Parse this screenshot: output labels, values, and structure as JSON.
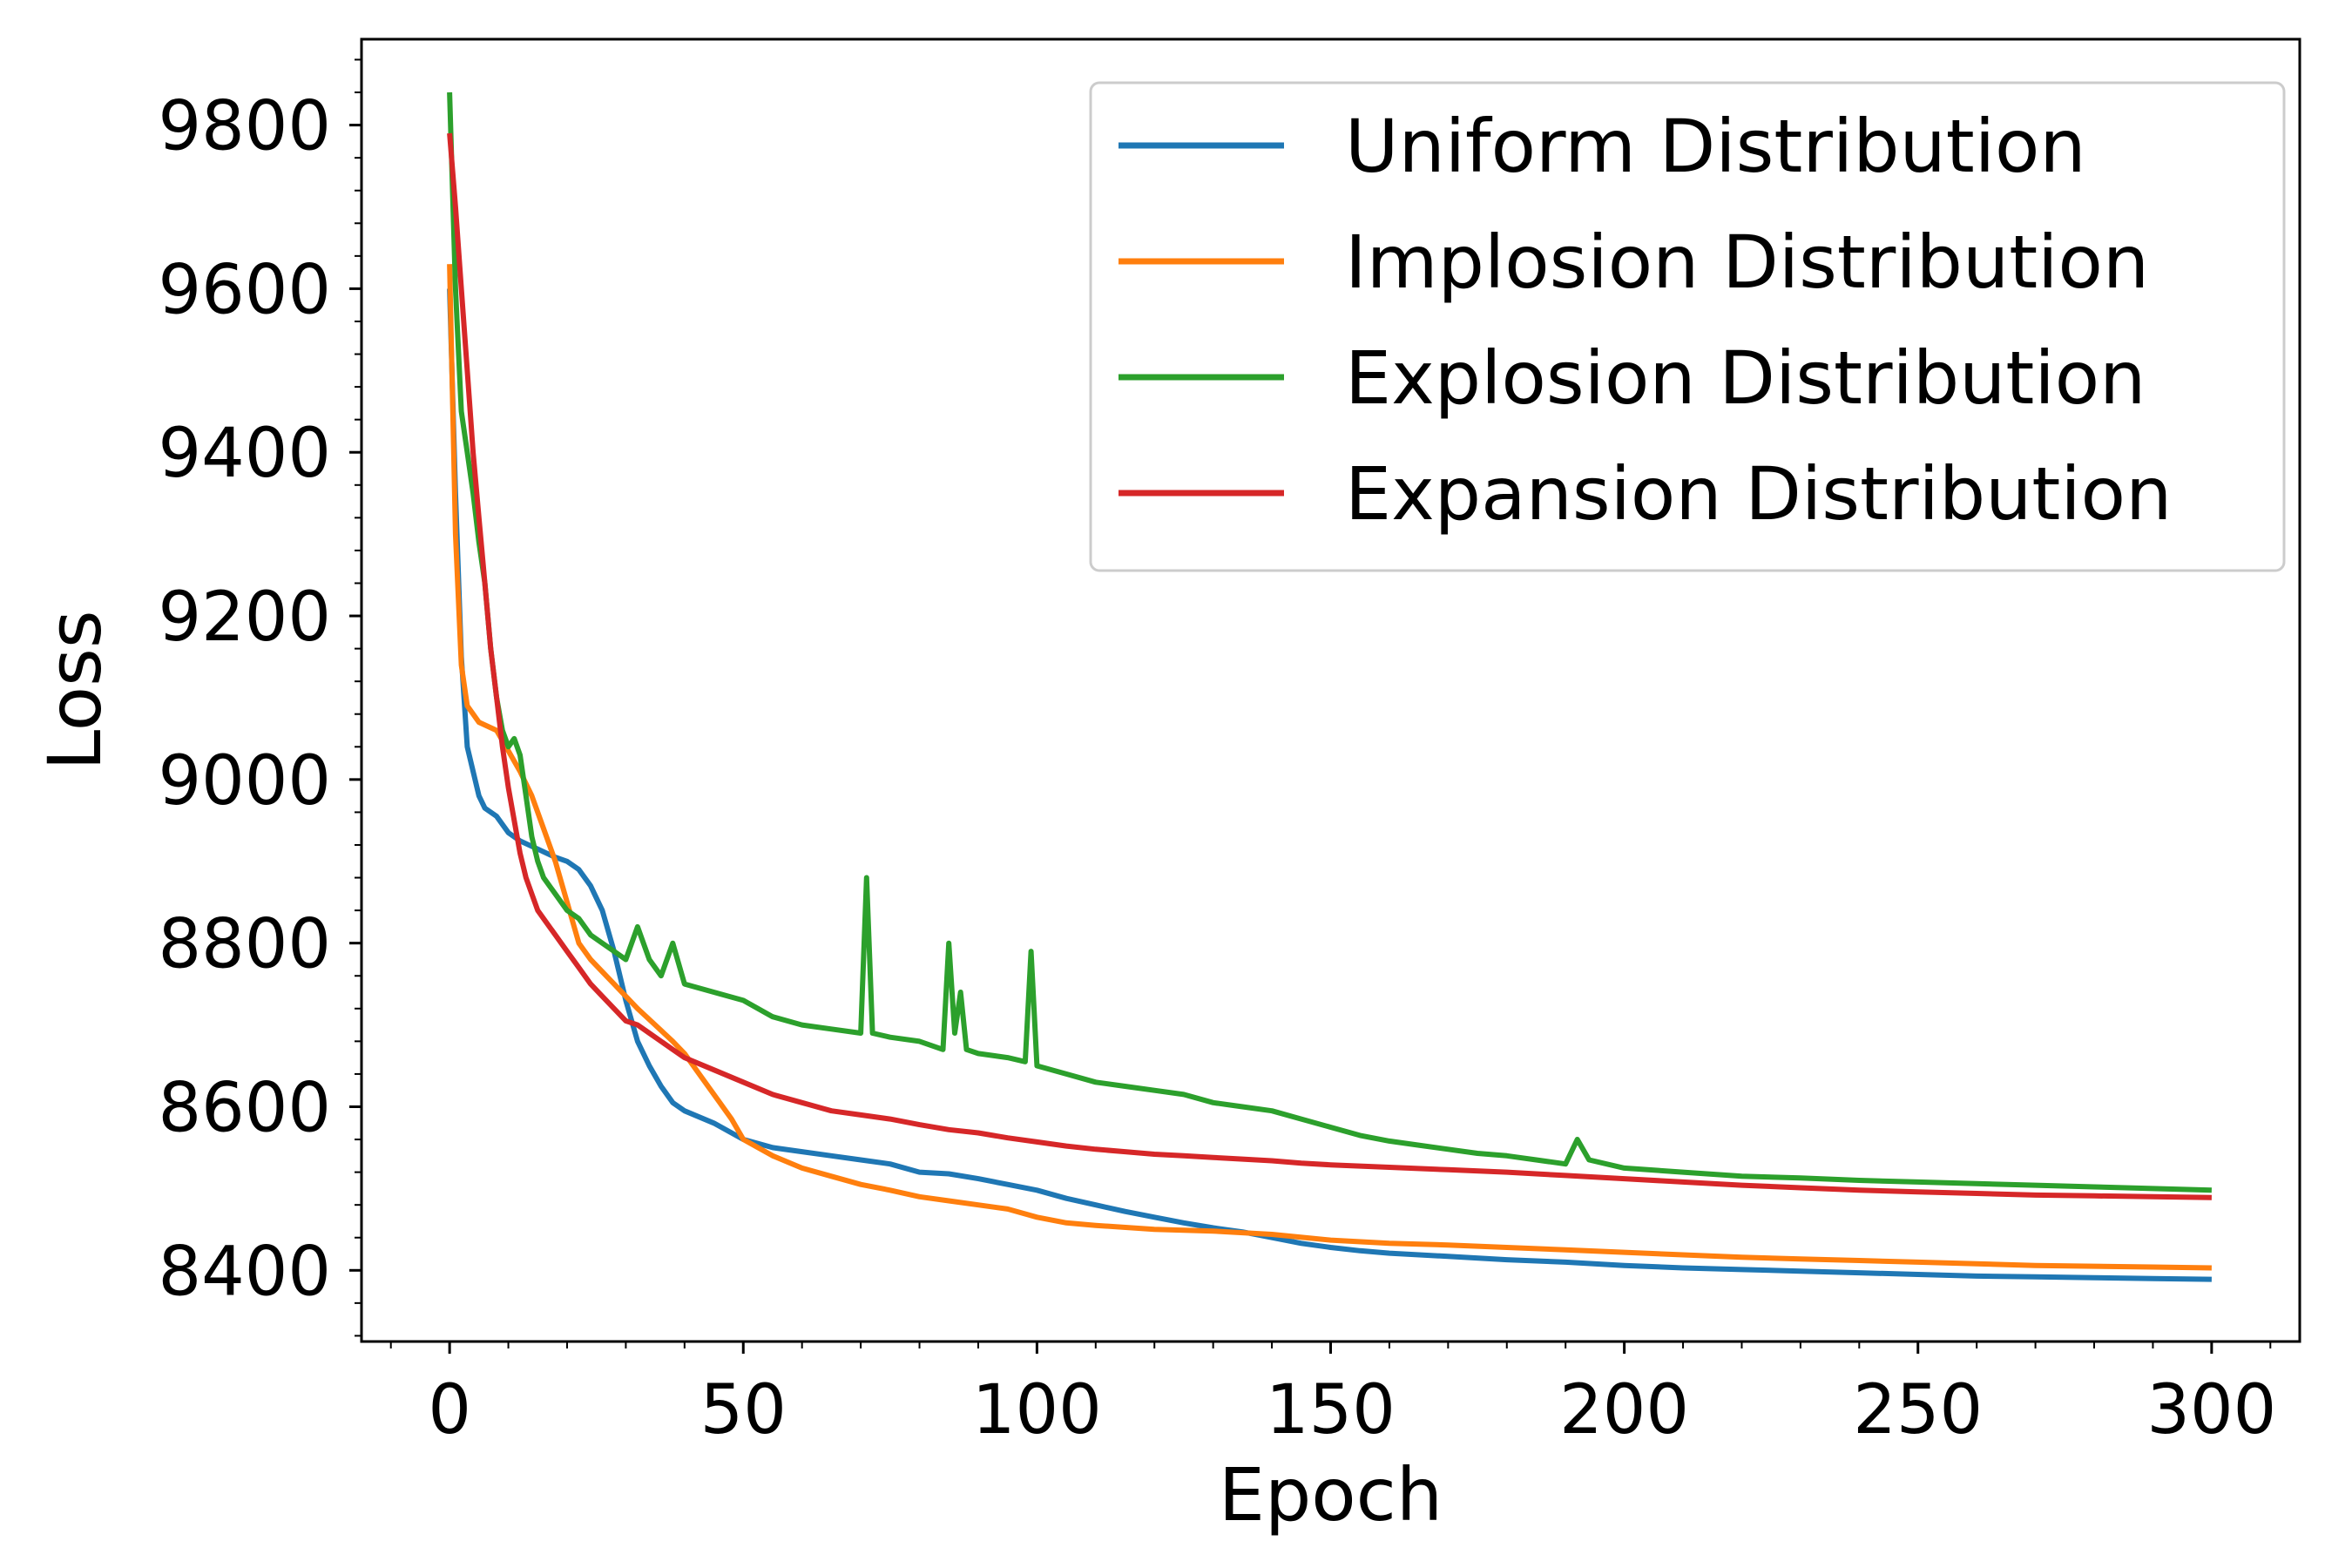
{
  "chart_data": {
    "type": "line",
    "xlabel": "Epoch",
    "ylabel": "Loss",
    "xlim": [
      -15,
      315
    ],
    "ylim": [
      8313,
      9905
    ],
    "xticks": [
      0,
      50,
      100,
      150,
      200,
      250,
      300
    ],
    "yticks": [
      8400,
      8600,
      8800,
      9000,
      9200,
      9400,
      9600,
      9800
    ],
    "grid": false,
    "legend_position": "top-right",
    "colors": {
      "Uniform Distribution": "#1f77b4",
      "Implosion Distribution": "#ff7f0e",
      "Explosion Distribution": "#2ca02c",
      "Expansion Distribution": "#d62728"
    },
    "series": [
      {
        "name": "Uniform Distribution",
        "points": [
          [
            0,
            9600
          ],
          [
            1,
            9350
          ],
          [
            2,
            9150
          ],
          [
            3,
            9040
          ],
          [
            4,
            9010
          ],
          [
            5,
            8980
          ],
          [
            6,
            8965
          ],
          [
            8,
            8955
          ],
          [
            10,
            8935
          ],
          [
            12,
            8925
          ],
          [
            15,
            8915
          ],
          [
            18,
            8905
          ],
          [
            20,
            8900
          ],
          [
            22,
            8890
          ],
          [
            24,
            8870
          ],
          [
            26,
            8840
          ],
          [
            28,
            8790
          ],
          [
            30,
            8730
          ],
          [
            32,
            8680
          ],
          [
            34,
            8650
          ],
          [
            36,
            8625
          ],
          [
            38,
            8605
          ],
          [
            40,
            8595
          ],
          [
            45,
            8580
          ],
          [
            50,
            8560
          ],
          [
            55,
            8550
          ],
          [
            60,
            8545
          ],
          [
            65,
            8540
          ],
          [
            70,
            8535
          ],
          [
            75,
            8530
          ],
          [
            80,
            8520
          ],
          [
            85,
            8518
          ],
          [
            90,
            8512
          ],
          [
            95,
            8505
          ],
          [
            100,
            8498
          ],
          [
            105,
            8488
          ],
          [
            110,
            8480
          ],
          [
            115,
            8472
          ],
          [
            120,
            8465
          ],
          [
            125,
            8458
          ],
          [
            130,
            8452
          ],
          [
            135,
            8447
          ],
          [
            140,
            8440
          ],
          [
            145,
            8433
          ],
          [
            150,
            8428
          ],
          [
            155,
            8424
          ],
          [
            160,
            8421
          ],
          [
            170,
            8417
          ],
          [
            180,
            8413
          ],
          [
            190,
            8410
          ],
          [
            200,
            8406
          ],
          [
            210,
            8403
          ],
          [
            220,
            8401
          ],
          [
            230,
            8399
          ],
          [
            240,
            8397
          ],
          [
            250,
            8395
          ],
          [
            260,
            8393
          ],
          [
            270,
            8392
          ],
          [
            280,
            8391
          ],
          [
            290,
            8390
          ],
          [
            300,
            8389
          ]
        ]
      },
      {
        "name": "Implosion Distribution",
        "points": [
          [
            0,
            9630
          ],
          [
            1,
            9300
          ],
          [
            2,
            9140
          ],
          [
            3,
            9090
          ],
          [
            5,
            9070
          ],
          [
            8,
            9060
          ],
          [
            10,
            9035
          ],
          [
            12,
            9010
          ],
          [
            14,
            8980
          ],
          [
            16,
            8940
          ],
          [
            18,
            8900
          ],
          [
            20,
            8850
          ],
          [
            22,
            8800
          ],
          [
            24,
            8780
          ],
          [
            26,
            8765
          ],
          [
            28,
            8750
          ],
          [
            30,
            8735
          ],
          [
            32,
            8720
          ],
          [
            35,
            8700
          ],
          [
            38,
            8680
          ],
          [
            40,
            8665
          ],
          [
            42,
            8645
          ],
          [
            44,
            8625
          ],
          [
            46,
            8605
          ],
          [
            48,
            8585
          ],
          [
            50,
            8560
          ],
          [
            55,
            8540
          ],
          [
            60,
            8525
          ],
          [
            65,
            8515
          ],
          [
            70,
            8505
          ],
          [
            75,
            8498
          ],
          [
            80,
            8490
          ],
          [
            85,
            8485
          ],
          [
            90,
            8480
          ],
          [
            95,
            8475
          ],
          [
            100,
            8465
          ],
          [
            105,
            8458
          ],
          [
            110,
            8455
          ],
          [
            120,
            8450
          ],
          [
            130,
            8448
          ],
          [
            140,
            8444
          ],
          [
            150,
            8437
          ],
          [
            160,
            8433
          ],
          [
            170,
            8431
          ],
          [
            180,
            8428
          ],
          [
            190,
            8425
          ],
          [
            200,
            8422
          ],
          [
            210,
            8419
          ],
          [
            220,
            8416
          ],
          [
            230,
            8414
          ],
          [
            240,
            8412
          ],
          [
            250,
            8410
          ],
          [
            260,
            8408
          ],
          [
            270,
            8406
          ],
          [
            280,
            8405
          ],
          [
            290,
            8404
          ],
          [
            300,
            8403
          ]
        ]
      },
      {
        "name": "Explosion Distribution",
        "points": [
          [
            0,
            9840
          ],
          [
            1,
            9600
          ],
          [
            2,
            9450
          ],
          [
            3,
            9400
          ],
          [
            4,
            9350
          ],
          [
            5,
            9290
          ],
          [
            6,
            9240
          ],
          [
            7,
            9160
          ],
          [
            8,
            9100
          ],
          [
            9,
            9060
          ],
          [
            10,
            9040
          ],
          [
            11,
            9050
          ],
          [
            12,
            9030
          ],
          [
            13,
            8980
          ],
          [
            14,
            8930
          ],
          [
            15,
            8900
          ],
          [
            16,
            8880
          ],
          [
            18,
            8860
          ],
          [
            20,
            8840
          ],
          [
            22,
            8830
          ],
          [
            24,
            8810
          ],
          [
            26,
            8800
          ],
          [
            28,
            8790
          ],
          [
            30,
            8780
          ],
          [
            32,
            8820
          ],
          [
            34,
            8780
          ],
          [
            36,
            8760
          ],
          [
            38,
            8800
          ],
          [
            40,
            8750
          ],
          [
            45,
            8740
          ],
          [
            50,
            8730
          ],
          [
            55,
            8710
          ],
          [
            60,
            8700
          ],
          [
            65,
            8695
          ],
          [
            70,
            8690
          ],
          [
            71,
            8880
          ],
          [
            72,
            8690
          ],
          [
            75,
            8685
          ],
          [
            80,
            8680
          ],
          [
            84,
            8670
          ],
          [
            85,
            8800
          ],
          [
            86,
            8690
          ],
          [
            87,
            8740
          ],
          [
            88,
            8670
          ],
          [
            90,
            8665
          ],
          [
            95,
            8660
          ],
          [
            98,
            8655
          ],
          [
            99,
            8790
          ],
          [
            100,
            8650
          ],
          [
            105,
            8640
          ],
          [
            110,
            8630
          ],
          [
            115,
            8625
          ],
          [
            120,
            8620
          ],
          [
            125,
            8615
          ],
          [
            130,
            8605
          ],
          [
            135,
            8600
          ],
          [
            140,
            8595
          ],
          [
            145,
            8585
          ],
          [
            150,
            8575
          ],
          [
            155,
            8565
          ],
          [
            160,
            8558
          ],
          [
            165,
            8553
          ],
          [
            170,
            8548
          ],
          [
            175,
            8543
          ],
          [
            180,
            8540
          ],
          [
            185,
            8535
          ],
          [
            190,
            8530
          ],
          [
            192,
            8560
          ],
          [
            194,
            8535
          ],
          [
            200,
            8525
          ],
          [
            210,
            8520
          ],
          [
            220,
            8515
          ],
          [
            230,
            8513
          ],
          [
            240,
            8510
          ],
          [
            250,
            8508
          ],
          [
            260,
            8506
          ],
          [
            270,
            8504
          ],
          [
            280,
            8502
          ],
          [
            290,
            8500
          ],
          [
            300,
            8498
          ]
        ]
      },
      {
        "name": "Expansion Distribution",
        "points": [
          [
            0,
            9790
          ],
          [
            1,
            9700
          ],
          [
            2,
            9600
          ],
          [
            3,
            9500
          ],
          [
            4,
            9400
          ],
          [
            5,
            9320
          ],
          [
            6,
            9240
          ],
          [
            7,
            9160
          ],
          [
            8,
            9100
          ],
          [
            9,
            9040
          ],
          [
            10,
            8990
          ],
          [
            11,
            8950
          ],
          [
            12,
            8910
          ],
          [
            13,
            8880
          ],
          [
            14,
            8860
          ],
          [
            15,
            8840
          ],
          [
            16,
            8830
          ],
          [
            18,
            8810
          ],
          [
            20,
            8790
          ],
          [
            22,
            8770
          ],
          [
            24,
            8750
          ],
          [
            26,
            8735
          ],
          [
            28,
            8720
          ],
          [
            30,
            8705
          ],
          [
            32,
            8700
          ],
          [
            34,
            8690
          ],
          [
            36,
            8680
          ],
          [
            38,
            8670
          ],
          [
            40,
            8660
          ],
          [
            45,
            8645
          ],
          [
            50,
            8630
          ],
          [
            55,
            8615
          ],
          [
            60,
            8605
          ],
          [
            65,
            8595
          ],
          [
            70,
            8590
          ],
          [
            75,
            8585
          ],
          [
            80,
            8578
          ],
          [
            85,
            8572
          ],
          [
            90,
            8568
          ],
          [
            95,
            8562
          ],
          [
            100,
            8557
          ],
          [
            105,
            8552
          ],
          [
            110,
            8548
          ],
          [
            115,
            8545
          ],
          [
            120,
            8542
          ],
          [
            125,
            8540
          ],
          [
            130,
            8538
          ],
          [
            135,
            8536
          ],
          [
            140,
            8534
          ],
          [
            145,
            8531
          ],
          [
            150,
            8529
          ],
          [
            160,
            8526
          ],
          [
            170,
            8523
          ],
          [
            180,
            8520
          ],
          [
            190,
            8516
          ],
          [
            200,
            8512
          ],
          [
            210,
            8508
          ],
          [
            220,
            8504
          ],
          [
            230,
            8501
          ],
          [
            240,
            8498
          ],
          [
            250,
            8496
          ],
          [
            260,
            8494
          ],
          [
            270,
            8492
          ],
          [
            280,
            8491
          ],
          [
            290,
            8490
          ],
          [
            300,
            8489
          ]
        ]
      }
    ]
  }
}
